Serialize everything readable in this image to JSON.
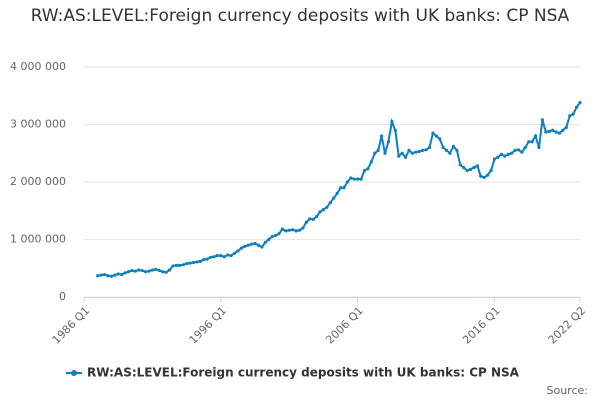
{
  "chart_data": {
    "type": "line",
    "title": "RW:AS:LEVEL:Foreign currency deposits with UK banks: CP NSA",
    "source_label": "Source:",
    "categories": [
      "1986 Q1",
      "1986 Q2",
      "1986 Q3",
      "1986 Q4",
      "1987 Q1",
      "1987 Q2",
      "1987 Q3",
      "1987 Q4",
      "1988 Q1",
      "1988 Q2",
      "1988 Q3",
      "1988 Q4",
      "1989 Q1",
      "1989 Q2",
      "1989 Q3",
      "1989 Q4",
      "1990 Q1",
      "1990 Q2",
      "1990 Q3",
      "1990 Q4",
      "1991 Q1",
      "1991 Q2",
      "1991 Q3",
      "1991 Q4",
      "1992 Q1",
      "1992 Q2",
      "1992 Q3",
      "1992 Q4",
      "1993 Q1",
      "1993 Q2",
      "1993 Q3",
      "1993 Q4",
      "1994 Q1",
      "1994 Q2",
      "1994 Q3",
      "1994 Q4",
      "1995 Q1",
      "1995 Q2",
      "1995 Q3",
      "1995 Q4",
      "1996 Q1",
      "1996 Q2",
      "1996 Q3",
      "1996 Q4",
      "1997 Q1",
      "1997 Q2",
      "1997 Q3",
      "1997 Q4",
      "1998 Q1",
      "1998 Q2",
      "1998 Q3",
      "1998 Q4",
      "1999 Q1",
      "1999 Q2",
      "1999 Q3",
      "1999 Q4",
      "2000 Q1",
      "2000 Q2",
      "2000 Q3",
      "2000 Q4",
      "2001 Q1",
      "2001 Q2",
      "2001 Q3",
      "2001 Q4",
      "2002 Q1",
      "2002 Q2",
      "2002 Q3",
      "2002 Q4",
      "2003 Q1",
      "2003 Q2",
      "2003 Q3",
      "2003 Q4",
      "2004 Q1",
      "2004 Q2",
      "2004 Q3",
      "2004 Q4",
      "2005 Q1",
      "2005 Q2",
      "2005 Q3",
      "2005 Q4",
      "2006 Q1",
      "2006 Q2",
      "2006 Q3",
      "2006 Q4",
      "2007 Q1",
      "2007 Q2",
      "2007 Q3",
      "2007 Q4",
      "2008 Q1",
      "2008 Q2",
      "2008 Q3",
      "2008 Q4",
      "2009 Q1",
      "2009 Q2",
      "2009 Q3",
      "2009 Q4",
      "2010 Q1",
      "2010 Q2",
      "2010 Q3",
      "2010 Q4",
      "2011 Q1",
      "2011 Q2",
      "2011 Q3",
      "2011 Q4",
      "2012 Q1",
      "2012 Q2",
      "2012 Q3",
      "2012 Q4",
      "2013 Q1",
      "2013 Q2",
      "2013 Q3",
      "2013 Q4",
      "2014 Q1",
      "2014 Q2",
      "2014 Q3",
      "2014 Q4",
      "2015 Q1",
      "2015 Q2",
      "2015 Q3",
      "2015 Q4",
      "2016 Q1",
      "2016 Q2",
      "2016 Q3",
      "2016 Q4",
      "2017 Q1",
      "2017 Q2",
      "2017 Q3",
      "2017 Q4",
      "2018 Q1",
      "2018 Q2",
      "2018 Q3",
      "2018 Q4",
      "2019 Q1",
      "2019 Q2",
      "2019 Q3",
      "2019 Q4",
      "2020 Q1",
      "2020 Q2",
      "2020 Q3",
      "2020 Q4",
      "2021 Q1",
      "2021 Q2",
      "2021 Q3",
      "2021 Q4",
      "2022 Q1",
      "2022 Q2"
    ],
    "xticks": [
      "1986 Q1",
      "1996 Q1",
      "2006 Q1",
      "2016 Q1",
      "2022 Q2"
    ],
    "series": [
      {
        "name": "RW:AS:LEVEL:Foreign currency deposits with UK banks: CP NSA",
        "color": "#0e7fc0",
        "values": [
          null,
          null,
          null,
          null,
          370000,
          380000,
          390000,
          370000,
          360000,
          380000,
          400000,
          390000,
          420000,
          440000,
          460000,
          450000,
          470000,
          460000,
          440000,
          450000,
          470000,
          480000,
          460000,
          440000,
          430000,
          470000,
          540000,
          550000,
          550000,
          560000,
          580000,
          590000,
          600000,
          610000,
          620000,
          650000,
          660000,
          690000,
          700000,
          720000,
          720000,
          700000,
          730000,
          720000,
          760000,
          800000,
          850000,
          880000,
          900000,
          920000,
          930000,
          900000,
          870000,
          950000,
          1000000,
          1050000,
          1070000,
          1100000,
          1180000,
          1150000,
          1160000,
          1170000,
          1150000,
          1160000,
          1200000,
          1300000,
          1360000,
          1350000,
          1400000,
          1480000,
          1520000,
          1560000,
          1640000,
          1720000,
          1800000,
          1900000,
          1900000,
          2000000,
          2070000,
          2050000,
          2050000,
          2050000,
          2200000,
          2230000,
          2350000,
          2500000,
          2550000,
          2800000,
          2500000,
          2700000,
          3050000,
          2900000,
          2450000,
          2500000,
          2430000,
          2550000,
          2500000,
          2520000,
          2530000,
          2550000,
          2560000,
          2600000,
          2850000,
          2800000,
          2750000,
          2600000,
          2550000,
          2500000,
          2620000,
          2550000,
          2300000,
          2250000,
          2200000,
          2220000,
          2250000,
          2280000,
          2100000,
          2080000,
          2120000,
          2200000,
          2400000,
          2430000,
          2480000,
          2450000,
          2480000,
          2500000,
          2550000,
          2560000,
          2520000,
          2600000,
          2700000,
          2700000,
          2800000,
          2600000,
          3080000,
          2870000,
          2880000,
          2900000,
          2870000,
          2850000,
          2900000,
          2950000,
          3150000,
          3180000,
          3300000,
          3380000
        ]
      }
    ],
    "ylim": [
      0,
      4000000
    ],
    "yticks": [
      {
        "value": 0,
        "label": "0"
      },
      {
        "value": 1000000,
        "label": "1 000 000"
      },
      {
        "value": 2000000,
        "label": "2 000 000"
      },
      {
        "value": 3000000,
        "label": "3 000 000"
      },
      {
        "value": 4000000,
        "label": "4 000 000"
      }
    ],
    "grid": true
  }
}
